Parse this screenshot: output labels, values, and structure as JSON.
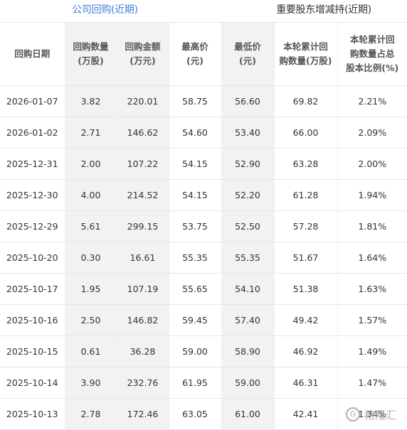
{
  "tabs": [
    {
      "label": "公司回购(近期)",
      "active": true
    },
    {
      "label": "重要股东增减持(近期)",
      "active": false
    }
  ],
  "colors": {
    "active_tab": "#3d7fd9",
    "shade": "#f2f2f2",
    "text": "#333333"
  },
  "table": {
    "headers": [
      [
        "回购日期"
      ],
      [
        "回购数量",
        "(万股)"
      ],
      [
        "回购金额",
        "(万元)"
      ],
      [
        "最高价",
        "(元)"
      ],
      [
        "最低价",
        "(元)"
      ],
      [
        "本轮累计回",
        "购数量(万股)"
      ],
      [
        "本轮累计回",
        "购数量占总",
        "股本比例(%)"
      ]
    ],
    "rows": [
      [
        "2026-01-07",
        "3.82",
        "220.01",
        "58.75",
        "56.60",
        "69.82",
        "2.21%"
      ],
      [
        "2026-01-02",
        "2.71",
        "146.62",
        "54.60",
        "53.40",
        "66.00",
        "2.09%"
      ],
      [
        "2025-12-31",
        "2.00",
        "107.22",
        "54.15",
        "52.90",
        "63.28",
        "2.00%"
      ],
      [
        "2025-12-30",
        "4.00",
        "214.52",
        "54.15",
        "52.20",
        "61.28",
        "1.94%"
      ],
      [
        "2025-12-29",
        "5.61",
        "299.15",
        "53.75",
        "52.50",
        "57.28",
        "1.81%"
      ],
      [
        "2025-10-20",
        "0.30",
        "16.61",
        "55.35",
        "55.35",
        "51.67",
        "1.64%"
      ],
      [
        "2025-10-17",
        "1.95",
        "107.19",
        "55.65",
        "54.10",
        "51.38",
        "1.63%"
      ],
      [
        "2025-10-16",
        "2.50",
        "146.82",
        "59.45",
        "57.40",
        "49.42",
        "1.57%"
      ],
      [
        "2025-10-15",
        "0.61",
        "36.28",
        "59.00",
        "58.90",
        "46.92",
        "1.49%"
      ],
      [
        "2025-10-14",
        "3.90",
        "232.76",
        "61.95",
        "59.00",
        "46.31",
        "1.47%"
      ],
      [
        "2025-10-13",
        "2.78",
        "172.46",
        "63.05",
        "61.00",
        "42.41",
        "1.34%"
      ]
    ]
  },
  "watermark": {
    "mark": "G",
    "text": "格隆汇"
  }
}
